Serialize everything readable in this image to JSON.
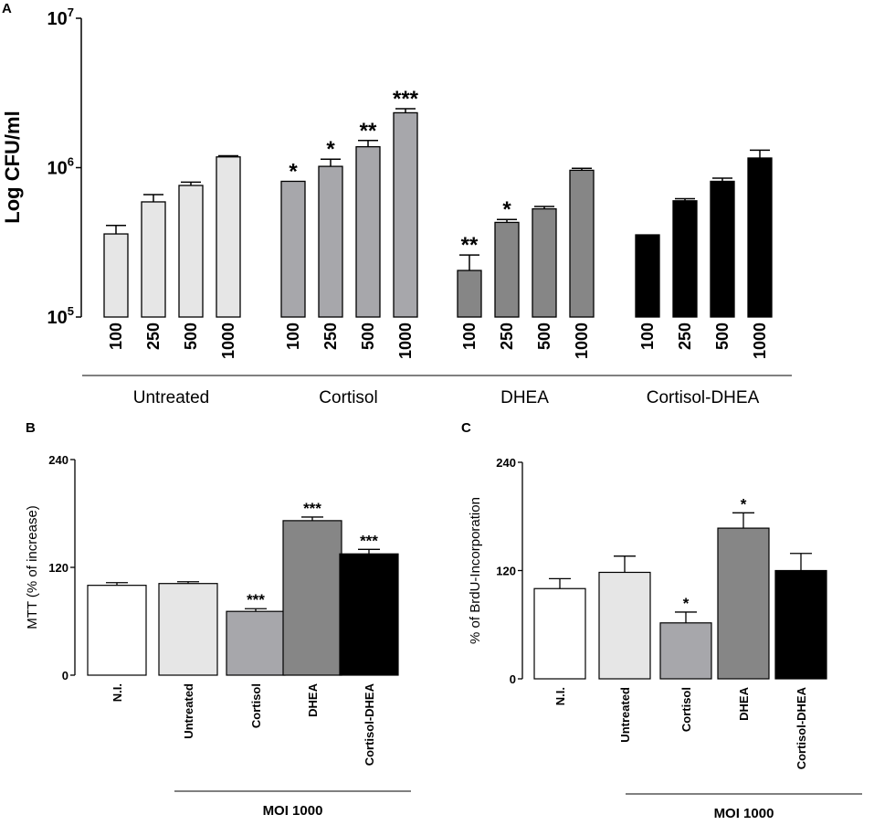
{
  "chart_data": [
    {
      "panel": "A",
      "type": "bar",
      "yscale": "log",
      "ylabel": "Log CFU/ml",
      "ylim": [
        100000,
        10000000
      ],
      "yticks": [
        {
          "base": "10",
          "exp": "5"
        },
        {
          "base": "10",
          "exp": "6"
        },
        {
          "base": "10",
          "exp": "7"
        }
      ],
      "groups": [
        {
          "name": "Untreated",
          "color": "#e6e6e6",
          "bars": [
            {
              "label": "100",
              "value": 360000,
              "err": 50000,
              "sig": ""
            },
            {
              "label": "250",
              "value": 590000,
              "err": 70000,
              "sig": ""
            },
            {
              "label": "500",
              "value": 760000,
              "err": 40000,
              "sig": ""
            },
            {
              "label": "1000",
              "value": 1180000,
              "err": 20000,
              "sig": ""
            }
          ]
        },
        {
          "name": "Cortisol",
          "color": "#a7a7ab",
          "bars": [
            {
              "label": "100",
              "value": 810000,
              "err": 0,
              "sig": "*"
            },
            {
              "label": "250",
              "value": 1020000,
              "err": 120000,
              "sig": "*"
            },
            {
              "label": "500",
              "value": 1380000,
              "err": 140000,
              "sig": "**"
            },
            {
              "label": "1000",
              "value": 2330000,
              "err": 150000,
              "sig": "***"
            }
          ]
        },
        {
          "name": "DHEA",
          "color": "#868686",
          "bars": [
            {
              "label": "100",
              "value": 205000,
              "err": 55000,
              "sig": "**"
            },
            {
              "label": "250",
              "value": 430000,
              "err": 20000,
              "sig": "*"
            },
            {
              "label": "500",
              "value": 530000,
              "err": 20000,
              "sig": ""
            },
            {
              "label": "1000",
              "value": 960000,
              "err": 30000,
              "sig": ""
            }
          ]
        },
        {
          "name": "Cortisol-DHEA",
          "color": "#000000",
          "bars": [
            {
              "label": "100",
              "value": 355000,
              "err": 0,
              "sig": ""
            },
            {
              "label": "250",
              "value": 600000,
              "err": 20000,
              "sig": ""
            },
            {
              "label": "500",
              "value": 810000,
              "err": 40000,
              "sig": ""
            },
            {
              "label": "1000",
              "value": 1160000,
              "err": 150000,
              "sig": ""
            }
          ]
        }
      ]
    },
    {
      "panel": "B",
      "type": "bar",
      "ylabel": "MTT (% of increase)",
      "ylim": [
        0,
        240
      ],
      "yticks": [
        "0",
        "120",
        "240"
      ],
      "group_label": "MOI 1000",
      "bars": [
        {
          "label": "N.I.",
          "value": 100,
          "err": 3,
          "sig": "",
          "color": "#ffffff"
        },
        {
          "label": "Untreated",
          "value": 102,
          "err": 2,
          "sig": "",
          "color": "#e6e6e6"
        },
        {
          "label": "Cortisol",
          "value": 71,
          "err": 3,
          "sig": "***",
          "color": "#a7a7ab"
        },
        {
          "label": "DHEA",
          "value": 172,
          "err": 4,
          "sig": "***",
          "color": "#868686"
        },
        {
          "label": "Cortisol-DHEA",
          "value": 135,
          "err": 5,
          "sig": "***",
          "color": "#000000"
        }
      ]
    },
    {
      "panel": "C",
      "type": "bar",
      "ylabel": "% of BrdU-Incorporation",
      "ylim": [
        0,
        240
      ],
      "yticks": [
        "0",
        "120",
        "240"
      ],
      "group_label": "MOI 1000",
      "bars": [
        {
          "label": "N.I.",
          "value": 100,
          "err": 11,
          "sig": "",
          "color": "#ffffff"
        },
        {
          "label": "Untreated",
          "value": 118,
          "err": 18,
          "sig": "",
          "color": "#e6e6e6"
        },
        {
          "label": "Cortisol",
          "value": 62,
          "err": 12,
          "sig": "*",
          "color": "#a7a7ab"
        },
        {
          "label": "DHEA",
          "value": 167,
          "err": 17,
          "sig": "*",
          "color": "#868686"
        },
        {
          "label": "Cortisol-DHEA",
          "value": 120,
          "err": 19,
          "sig": "",
          "color": "#000000"
        }
      ]
    }
  ],
  "panel_letters": [
    "A",
    "B",
    "C"
  ]
}
